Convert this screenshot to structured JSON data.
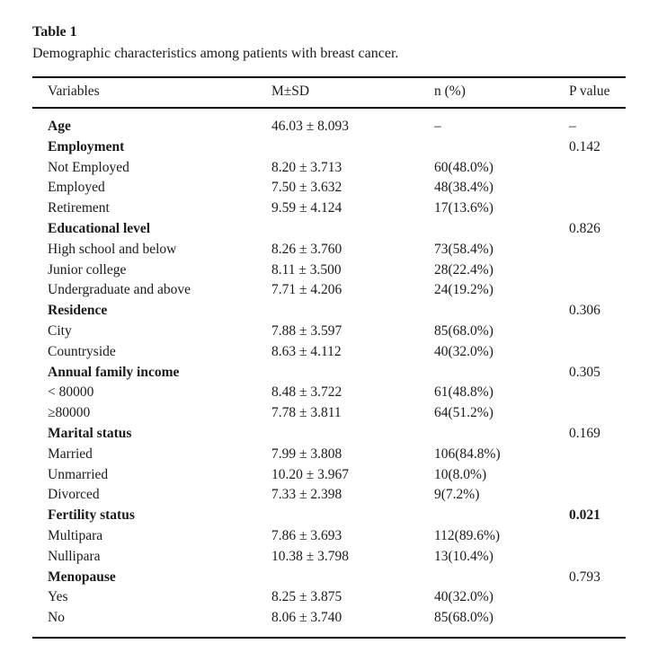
{
  "table": {
    "label": "Table 1",
    "caption": "Demographic characteristics among patients with breast cancer.",
    "columns": [
      "Variables",
      "M±SD",
      "n (%)",
      "P value"
    ],
    "rows": [
      {
        "variable": "Age",
        "bold": true,
        "msd": "46.03 ± 8.093",
        "n": "–",
        "p": "–",
        "p_bold": false
      },
      {
        "variable": "Employment",
        "bold": true,
        "msd": "",
        "n": "",
        "p": "0.142",
        "p_bold": false
      },
      {
        "variable": "Not Employed",
        "bold": false,
        "msd": "8.20 ± 3.713",
        "n": "60(48.0%)",
        "p": "",
        "p_bold": false
      },
      {
        "variable": "Employed",
        "bold": false,
        "msd": "7.50 ± 3.632",
        "n": "48(38.4%)",
        "p": "",
        "p_bold": false
      },
      {
        "variable": "Retirement",
        "bold": false,
        "msd": "9.59 ± 4.124",
        "n": "17(13.6%)",
        "p": "",
        "p_bold": false
      },
      {
        "variable": "Educational level",
        "bold": true,
        "msd": "",
        "n": "",
        "p": "0.826",
        "p_bold": false
      },
      {
        "variable": "High school and below",
        "bold": false,
        "msd": "8.26 ± 3.760",
        "n": "73(58.4%)",
        "p": "",
        "p_bold": false
      },
      {
        "variable": "Junior college",
        "bold": false,
        "msd": "8.11 ± 3.500",
        "n": "28(22.4%)",
        "p": "",
        "p_bold": false
      },
      {
        "variable": "Undergraduate and above",
        "bold": false,
        "msd": "7.71 ± 4.206",
        "n": "24(19.2%)",
        "p": "",
        "p_bold": false
      },
      {
        "variable": "Residence",
        "bold": true,
        "msd": "",
        "n": "",
        "p": "0.306",
        "p_bold": false
      },
      {
        "variable": "City",
        "bold": false,
        "msd": "7.88 ± 3.597",
        "n": "85(68.0%)",
        "p": "",
        "p_bold": false
      },
      {
        "variable": "Countryside",
        "bold": false,
        "msd": "8.63 ± 4.112",
        "n": "40(32.0%)",
        "p": "",
        "p_bold": false
      },
      {
        "variable": "Annual family income",
        "bold": true,
        "msd": "",
        "n": "",
        "p": "0.305",
        "p_bold": false
      },
      {
        "variable": "< 80000",
        "bold": false,
        "msd": "8.48 ± 3.722",
        "n": "61(48.8%)",
        "p": "",
        "p_bold": false
      },
      {
        "variable": "≥80000",
        "bold": false,
        "msd": "7.78 ± 3.811",
        "n": "64(51.2%)",
        "p": "",
        "p_bold": false
      },
      {
        "variable": "Marital status",
        "bold": true,
        "msd": "",
        "n": "",
        "p": "0.169",
        "p_bold": false
      },
      {
        "variable": "Married",
        "bold": false,
        "msd": "7.99 ± 3.808",
        "n": "106(84.8%)",
        "p": "",
        "p_bold": false
      },
      {
        "variable": "Unmarried",
        "bold": false,
        "msd": "10.20 ± 3.967",
        "n": "10(8.0%)",
        "p": "",
        "p_bold": false
      },
      {
        "variable": "Divorced",
        "bold": false,
        "msd": "7.33 ± 2.398",
        "n": "9(7.2%)",
        "p": "",
        "p_bold": false
      },
      {
        "variable": "Fertility status",
        "bold": true,
        "msd": "",
        "n": "",
        "p": "0.021",
        "p_bold": true
      },
      {
        "variable": "Multipara",
        "bold": false,
        "msd": "7.86 ± 3.693",
        "n": "112(89.6%)",
        "p": "",
        "p_bold": false
      },
      {
        "variable": "Nullipara",
        "bold": false,
        "msd": "10.38 ± 3.798",
        "n": "13(10.4%)",
        "p": "",
        "p_bold": false
      },
      {
        "variable": "Menopause",
        "bold": true,
        "msd": "",
        "n": "",
        "p": "0.793",
        "p_bold": false
      },
      {
        "variable": "Yes",
        "bold": false,
        "msd": "8.25 ± 3.875",
        "n": "40(32.0%)",
        "p": "",
        "p_bold": false
      },
      {
        "variable": "No",
        "bold": false,
        "msd": "8.06 ± 3.740",
        "n": "85(68.0%)",
        "p": "",
        "p_bold": false
      }
    ],
    "colors": {
      "text": "#1b1b1b",
      "rule": "#000000",
      "background": "#ffffff"
    }
  }
}
